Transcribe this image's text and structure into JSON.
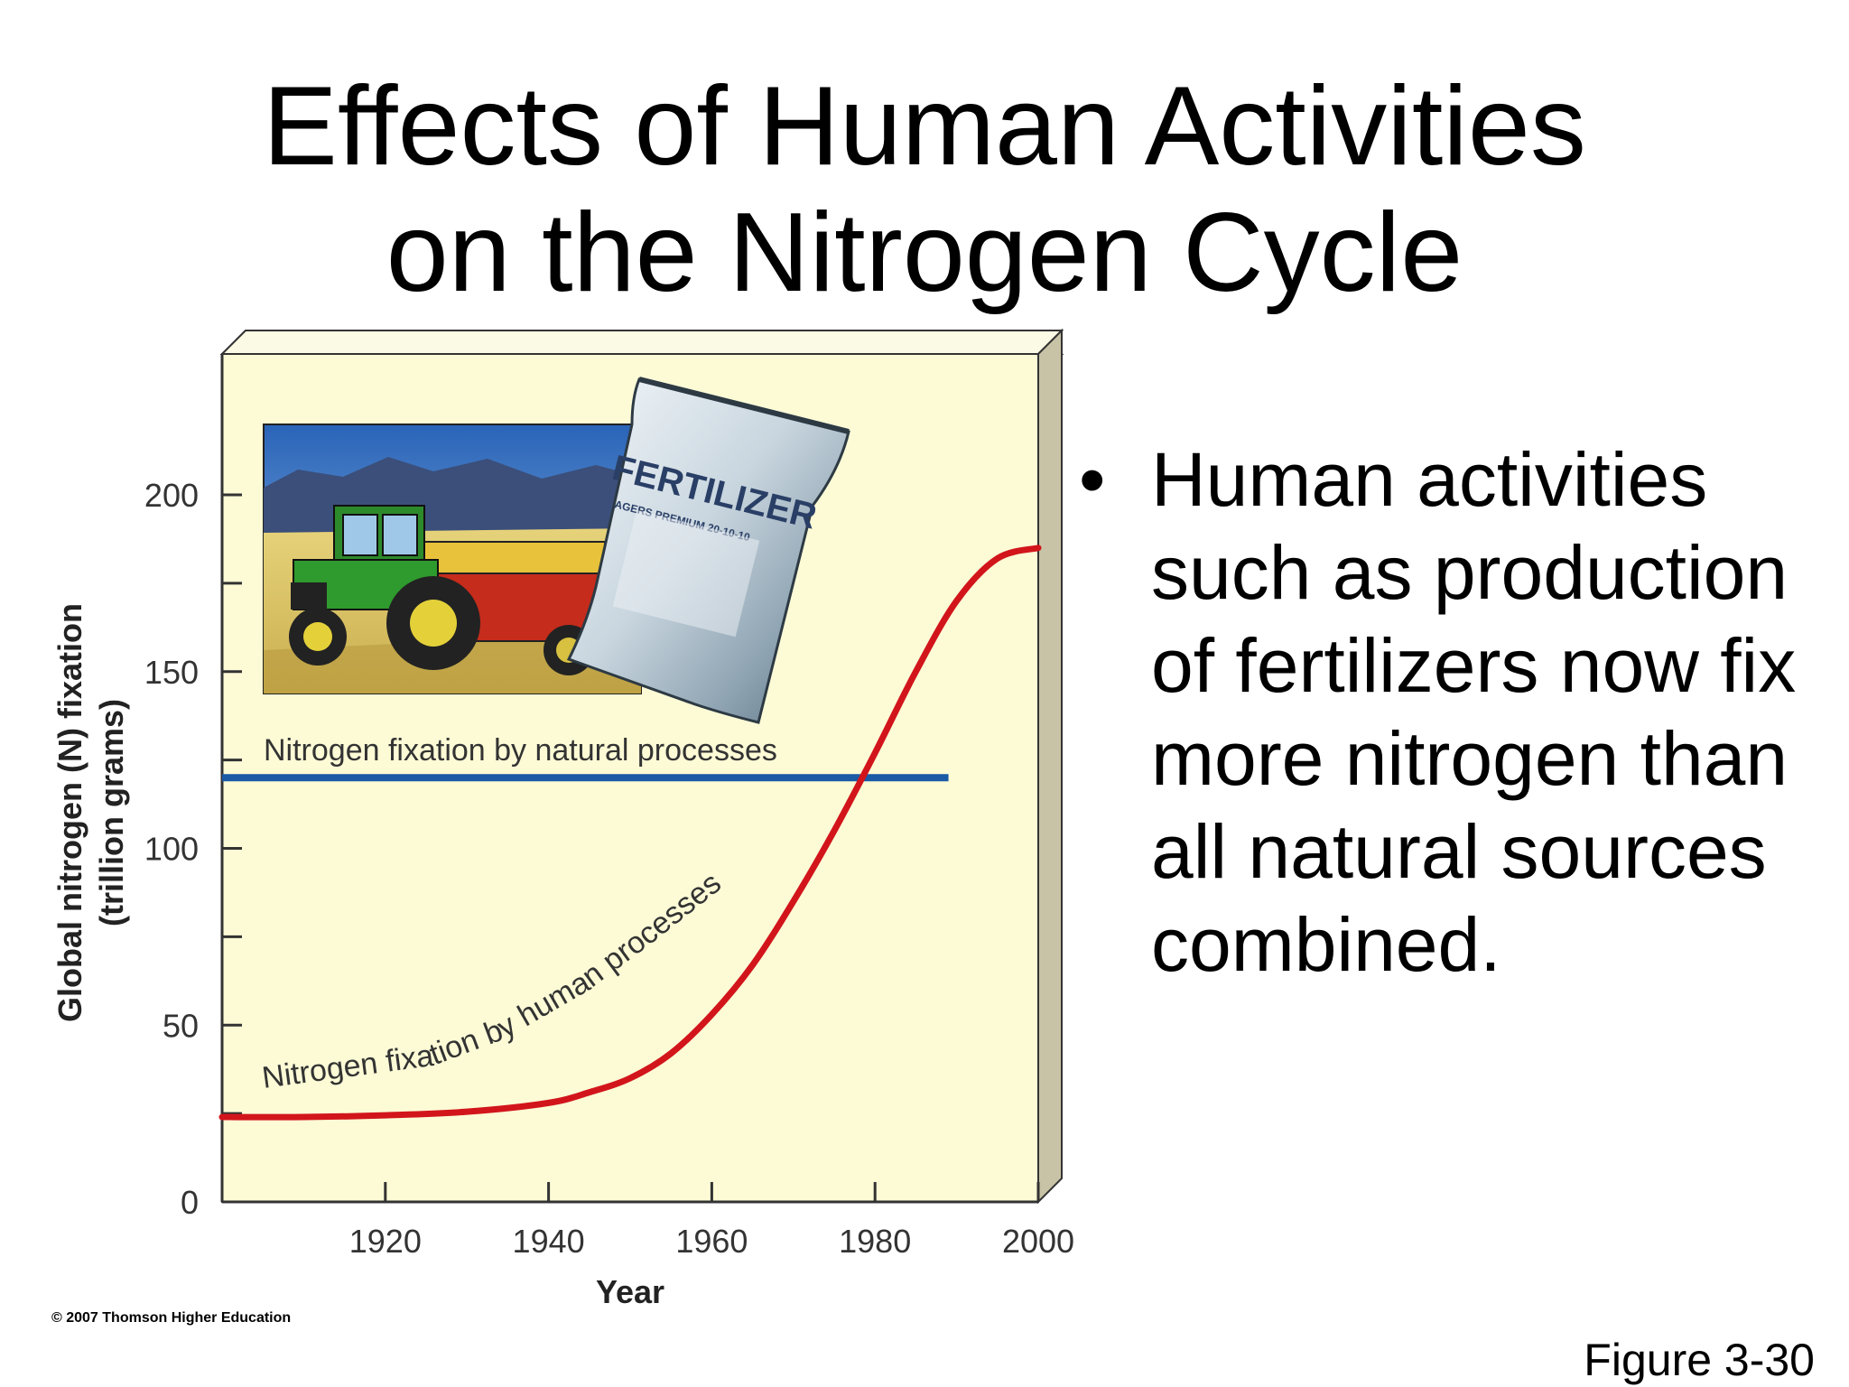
{
  "slide": {
    "title_line1": "Effects of Human Activities",
    "title_line2": "on the Nitrogen Cycle",
    "bullet": "Human activities such as production of fertilizers now fix more nitrogen than all natural sources combined.",
    "bullet_symbol": "•",
    "figure_label": "Figure 3-30",
    "copyright": "© 2007 Thomson Higher Education"
  },
  "illustration": {
    "bag_label": "FERTILIZER",
    "bag_sublabel": "AGERS PREMIUM 20-10-10"
  },
  "colors": {
    "panel": "#fcfbd6",
    "natural_line": "#1a5aa6",
    "human_line": "#d2151b",
    "axis": "#333333"
  },
  "chart_data": {
    "type": "line",
    "title": "",
    "xlabel": "Year",
    "ylabel_line1": "Global nitrogen (N) fixation",
    "ylabel_line2": "(trillion grams)",
    "xlim": [
      1900,
      2000
    ],
    "ylim": [
      0,
      200
    ],
    "x_ticks": [
      1920,
      1940,
      1960,
      1980,
      2000
    ],
    "y_ticks": [
      0,
      50,
      100,
      150,
      200
    ],
    "y_minor_ticks": [
      25,
      75,
      125,
      175
    ],
    "series": [
      {
        "name": "Nitrogen fixation by natural processes",
        "color": "#1a5aa6",
        "x": [
          1900,
          1989
        ],
        "y": [
          120,
          120
        ]
      },
      {
        "name": "Nitrogen fixation by human processes",
        "color": "#d2151b",
        "x": [
          1900,
          1910,
          1920,
          1930,
          1940,
          1945,
          1950,
          1955,
          1960,
          1965,
          1970,
          1975,
          1980,
          1985,
          1990,
          1995,
          2000
        ],
        "y": [
          24,
          24,
          24.5,
          25.5,
          28,
          31,
          35,
          42,
          53,
          67,
          85,
          105,
          127,
          150,
          170,
          182,
          185
        ]
      }
    ]
  }
}
